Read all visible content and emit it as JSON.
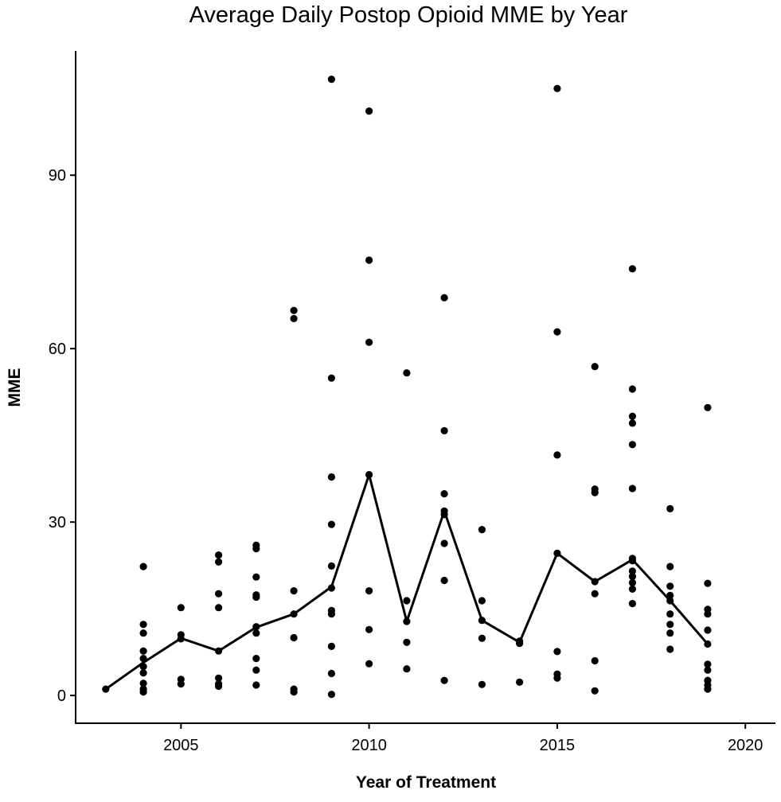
{
  "chart_data": {
    "type": "scatter",
    "title": "Average Daily Postop Opioid MME by Year",
    "xlabel": "Year of Treatment",
    "ylabel": "MME",
    "xlim": [
      2002.2,
      2020.8
    ],
    "ylim": [
      -4.8,
      111.5
    ],
    "x_ticks": [
      {
        "value": 2005,
        "label": "2005"
      },
      {
        "value": 2010,
        "label": "2010"
      },
      {
        "value": 2015,
        "label": "2015"
      },
      {
        "value": 2020,
        "label": "2020"
      }
    ],
    "y_ticks": [
      {
        "value": 0,
        "label": "0"
      },
      {
        "value": 30,
        "label": "30"
      },
      {
        "value": 60,
        "label": "60"
      },
      {
        "value": 90,
        "label": "90"
      }
    ],
    "grid": false,
    "legend": "none",
    "colors": {
      "points": "#000000",
      "line": "#000000",
      "axes": "#000000"
    },
    "series": [
      {
        "type": "scatter",
        "points": [
          {
            "x": 2003,
            "y": 1.1
          },
          {
            "x": 2004,
            "y": 22.3
          },
          {
            "x": 2004,
            "y": 12.3
          },
          {
            "x": 2004,
            "y": 10.8
          },
          {
            "x": 2004,
            "y": 7.7
          },
          {
            "x": 2004,
            "y": 6.4
          },
          {
            "x": 2004,
            "y": 5.0
          },
          {
            "x": 2004,
            "y": 3.9
          },
          {
            "x": 2004,
            "y": 2.1
          },
          {
            "x": 2004,
            "y": 1.1
          },
          {
            "x": 2004,
            "y": 0.6
          },
          {
            "x": 2005,
            "y": 15.2
          },
          {
            "x": 2005,
            "y": 10.5
          },
          {
            "x": 2005,
            "y": 9.8
          },
          {
            "x": 2005,
            "y": 2.8
          },
          {
            "x": 2005,
            "y": 2.0
          },
          {
            "x": 2006,
            "y": 24.3
          },
          {
            "x": 2006,
            "y": 23.1
          },
          {
            "x": 2006,
            "y": 17.6
          },
          {
            "x": 2006,
            "y": 15.2
          },
          {
            "x": 2006,
            "y": 7.7
          },
          {
            "x": 2006,
            "y": 3.0
          },
          {
            "x": 2006,
            "y": 2.0
          },
          {
            "x": 2006,
            "y": 1.6
          },
          {
            "x": 2007,
            "y": 26.0
          },
          {
            "x": 2007,
            "y": 25.4
          },
          {
            "x": 2007,
            "y": 20.5
          },
          {
            "x": 2007,
            "y": 17.4
          },
          {
            "x": 2007,
            "y": 17.0
          },
          {
            "x": 2007,
            "y": 11.9
          },
          {
            "x": 2007,
            "y": 10.8
          },
          {
            "x": 2007,
            "y": 6.4
          },
          {
            "x": 2007,
            "y": 4.4
          },
          {
            "x": 2007,
            "y": 1.8
          },
          {
            "x": 2008,
            "y": 66.6
          },
          {
            "x": 2008,
            "y": 65.2
          },
          {
            "x": 2008,
            "y": 18.1
          },
          {
            "x": 2008,
            "y": 14.1
          },
          {
            "x": 2008,
            "y": 10.0
          },
          {
            "x": 2008,
            "y": 1.1
          },
          {
            "x": 2008,
            "y": 0.6
          },
          {
            "x": 2009,
            "y": 106.6
          },
          {
            "x": 2009,
            "y": 54.9
          },
          {
            "x": 2009,
            "y": 37.8
          },
          {
            "x": 2009,
            "y": 29.6
          },
          {
            "x": 2009,
            "y": 22.4
          },
          {
            "x": 2009,
            "y": 18.6
          },
          {
            "x": 2009,
            "y": 14.7
          },
          {
            "x": 2009,
            "y": 14.1
          },
          {
            "x": 2009,
            "y": 8.5
          },
          {
            "x": 2009,
            "y": 3.8
          },
          {
            "x": 2009,
            "y": 0.2
          },
          {
            "x": 2010,
            "y": 101.1
          },
          {
            "x": 2010,
            "y": 75.3
          },
          {
            "x": 2010,
            "y": 61.1
          },
          {
            "x": 2010,
            "y": 38.2
          },
          {
            "x": 2010,
            "y": 18.1
          },
          {
            "x": 2010,
            "y": 11.4
          },
          {
            "x": 2010,
            "y": 5.5
          },
          {
            "x": 2011,
            "y": 55.8
          },
          {
            "x": 2011,
            "y": 16.4
          },
          {
            "x": 2011,
            "y": 12.8
          },
          {
            "x": 2011,
            "y": 9.2
          },
          {
            "x": 2011,
            "y": 4.6
          },
          {
            "x": 2012,
            "y": 68.8
          },
          {
            "x": 2012,
            "y": 45.8
          },
          {
            "x": 2012,
            "y": 34.9
          },
          {
            "x": 2012,
            "y": 31.9
          },
          {
            "x": 2012,
            "y": 31.3
          },
          {
            "x": 2012,
            "y": 26.3
          },
          {
            "x": 2012,
            "y": 19.9
          },
          {
            "x": 2012,
            "y": 2.6
          },
          {
            "x": 2013,
            "y": 28.7
          },
          {
            "x": 2013,
            "y": 16.4
          },
          {
            "x": 2013,
            "y": 13.0
          },
          {
            "x": 2013,
            "y": 9.9
          },
          {
            "x": 2013,
            "y": 1.9
          },
          {
            "x": 2014,
            "y": 9.4
          },
          {
            "x": 2014,
            "y": 9.0
          },
          {
            "x": 2014,
            "y": 2.3
          },
          {
            "x": 2015,
            "y": 105.0
          },
          {
            "x": 2015,
            "y": 62.9
          },
          {
            "x": 2015,
            "y": 41.6
          },
          {
            "x": 2015,
            "y": 24.6
          },
          {
            "x": 2015,
            "y": 7.6
          },
          {
            "x": 2015,
            "y": 3.7
          },
          {
            "x": 2015,
            "y": 3.0
          },
          {
            "x": 2016,
            "y": 56.9
          },
          {
            "x": 2016,
            "y": 35.7
          },
          {
            "x": 2016,
            "y": 35.1
          },
          {
            "x": 2016,
            "y": 19.7
          },
          {
            "x": 2016,
            "y": 17.6
          },
          {
            "x": 2016,
            "y": 6.0
          },
          {
            "x": 2016,
            "y": 0.8
          },
          {
            "x": 2017,
            "y": 73.8
          },
          {
            "x": 2017,
            "y": 53.0
          },
          {
            "x": 2017,
            "y": 48.3
          },
          {
            "x": 2017,
            "y": 47.1
          },
          {
            "x": 2017,
            "y": 43.4
          },
          {
            "x": 2017,
            "y": 35.8
          },
          {
            "x": 2017,
            "y": 23.7
          },
          {
            "x": 2017,
            "y": 23.3
          },
          {
            "x": 2017,
            "y": 21.5
          },
          {
            "x": 2017,
            "y": 20.6
          },
          {
            "x": 2017,
            "y": 19.5
          },
          {
            "x": 2017,
            "y": 18.4
          },
          {
            "x": 2017,
            "y": 15.9
          },
          {
            "x": 2018,
            "y": 32.3
          },
          {
            "x": 2018,
            "y": 22.3
          },
          {
            "x": 2018,
            "y": 18.9
          },
          {
            "x": 2018,
            "y": 17.3
          },
          {
            "x": 2018,
            "y": 16.4
          },
          {
            "x": 2018,
            "y": 14.1
          },
          {
            "x": 2018,
            "y": 12.3
          },
          {
            "x": 2018,
            "y": 10.8
          },
          {
            "x": 2018,
            "y": 8.0
          },
          {
            "x": 2019,
            "y": 49.8
          },
          {
            "x": 2019,
            "y": 19.4
          },
          {
            "x": 2019,
            "y": 14.9
          },
          {
            "x": 2019,
            "y": 14.1
          },
          {
            "x": 2019,
            "y": 11.3
          },
          {
            "x": 2019,
            "y": 8.9
          },
          {
            "x": 2019,
            "y": 5.4
          },
          {
            "x": 2019,
            "y": 4.4
          },
          {
            "x": 2019,
            "y": 2.6
          },
          {
            "x": 2019,
            "y": 1.8
          },
          {
            "x": 2019,
            "y": 1.1
          }
        ]
      },
      {
        "type": "line",
        "points": [
          {
            "x": 2003,
            "y": 1.1
          },
          {
            "x": 2004,
            "y": 5.7
          },
          {
            "x": 2005,
            "y": 9.9
          },
          {
            "x": 2006,
            "y": 7.7
          },
          {
            "x": 2007,
            "y": 11.8
          },
          {
            "x": 2008,
            "y": 14.1
          },
          {
            "x": 2009,
            "y": 18.8
          },
          {
            "x": 2010,
            "y": 38.2
          },
          {
            "x": 2011,
            "y": 12.8
          },
          {
            "x": 2012,
            "y": 31.9
          },
          {
            "x": 2013,
            "y": 13.0
          },
          {
            "x": 2014,
            "y": 9.2
          },
          {
            "x": 2015,
            "y": 24.6
          },
          {
            "x": 2016,
            "y": 19.7
          },
          {
            "x": 2017,
            "y": 23.5
          },
          {
            "x": 2018,
            "y": 16.4
          },
          {
            "x": 2019,
            "y": 8.9
          }
        ]
      }
    ]
  }
}
